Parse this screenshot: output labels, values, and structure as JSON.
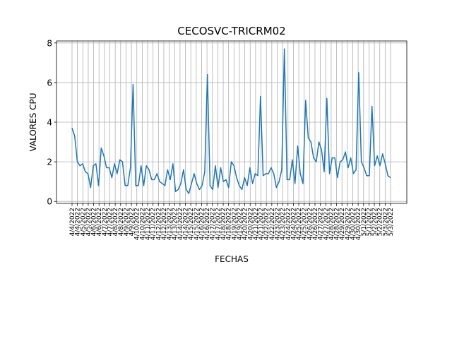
{
  "chart_data": {
    "type": "line",
    "title": "CECOSVC-TRICRM02",
    "xlabel": "FECHAS",
    "ylabel": "VALORES CPU",
    "ylim": [
      -0.1,
      8.1
    ],
    "yticks": [
      0,
      2,
      4,
      6,
      8
    ],
    "grid": true,
    "line_color": "#1f77b4",
    "xtick_labels": [
      "4/4/2022",
      "4/4/2022",
      "4/5/2022",
      "4/5/2022",
      "4/6/2022",
      "4/6/2022",
      "4/7/2022",
      "4/7/2022",
      "4/8/2022",
      "4/8/2022",
      "4/9/2022",
      "4/9/2022",
      "4/10/2022",
      "4/10/2022",
      "4/11/2022",
      "4/11/2022",
      "4/12/2022",
      "4/12/2022",
      "4/13/2022",
      "4/13/2022",
      "4/14/2022",
      "4/14/2022",
      "4/15/2022",
      "4/15/2022",
      "4/16/2022",
      "4/16/2022",
      "4/17/2022",
      "4/17/2022",
      "4/18/2022",
      "4/18/2022",
      "4/19/2022",
      "4/19/2022",
      "4/20/2022",
      "4/20/2022",
      "4/21/2022",
      "4/21/2022",
      "4/22/2022",
      "4/22/2022",
      "4/23/2022",
      "4/23/2022",
      "4/24/2022",
      "4/24/2022",
      "4/25/2022",
      "4/25/2022",
      "4/26/2022",
      "4/26/2022",
      "4/27/2022",
      "4/27/2022",
      "4/28/2022",
      "4/28/2022",
      "4/29/2022",
      "4/29/2022",
      "4/30/2022",
      "4/30/2022",
      "5/1/2022",
      "5/1/2022",
      "5/2/2022",
      "5/2/2022",
      "5/3/2022",
      "5/3/2022"
    ],
    "series": [
      {
        "values": [
          3.7,
          3.3,
          2.0,
          1.8,
          1.9,
          1.5,
          1.4,
          0.7,
          1.8,
          1.9,
          0.8,
          2.7,
          2.3,
          1.7,
          1.7,
          1.2,
          1.9,
          1.4,
          2.1,
          2.0,
          0.8,
          0.8,
          1.7,
          5.9,
          0.8,
          0.8,
          1.8,
          0.8,
          1.8,
          1.6,
          1.1,
          1.1,
          1.4,
          1.0,
          0.9,
          0.8,
          1.6,
          1.1,
          1.9,
          0.5,
          0.6,
          0.9,
          1.6,
          0.6,
          0.4,
          0.9,
          1.4,
          0.9,
          0.6,
          0.8,
          1.5,
          6.4,
          0.8,
          0.6,
          1.8,
          0.7,
          1.7,
          1.0,
          1.1,
          0.7,
          2.0,
          1.8,
          1.2,
          0.8,
          0.6,
          1.2,
          0.8,
          1.7,
          0.9,
          1.4,
          1.3,
          5.3,
          1.3,
          1.4,
          1.4,
          1.7,
          1.4,
          0.7,
          1.0,
          1.6,
          7.7,
          1.1,
          1.1,
          2.1,
          0.9,
          2.8,
          1.4,
          0.9,
          5.1,
          3.2,
          3.0,
          2.2,
          2.0,
          3.0,
          2.6,
          1.5,
          5.2,
          1.4,
          2.2,
          2.2,
          1.2,
          2.0,
          2.1,
          2.5,
          1.7,
          2.2,
          1.4,
          1.6,
          6.5,
          2.0,
          1.7,
          1.3,
          1.3,
          4.8,
          1.8,
          2.3,
          1.8,
          2.4,
          1.9,
          1.3,
          1.2
        ]
      }
    ]
  }
}
